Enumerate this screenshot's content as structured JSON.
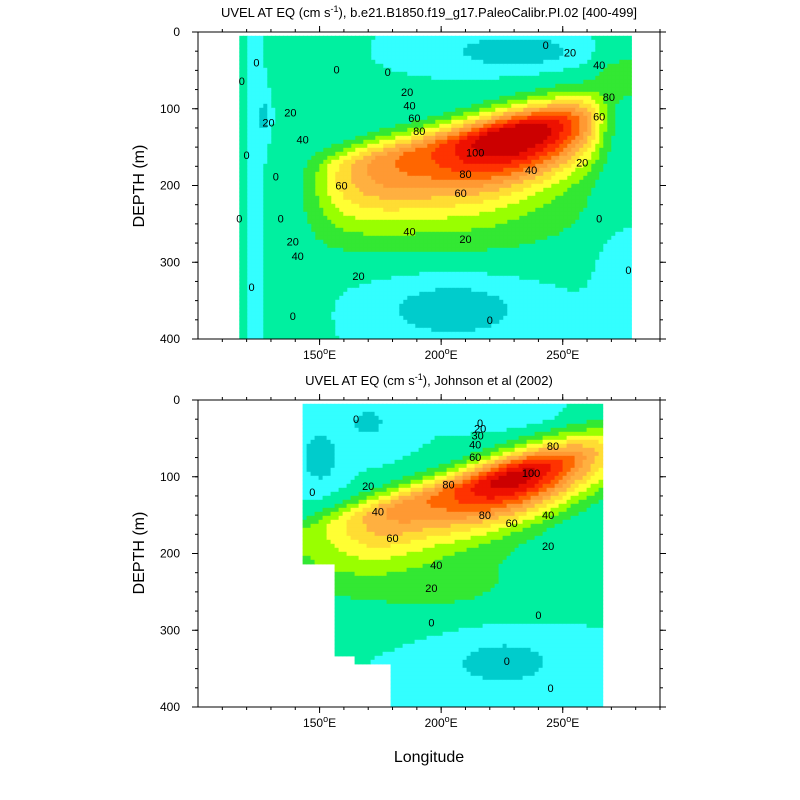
{
  "chart_data": [
    {
      "type": "heatmap",
      "id": "model",
      "title_main": "UVEL AT EQ (cm s",
      "title_sup": "-1",
      "title_rest": "), b.e21.B1850.f19_g17.PaleoCalibr.PI.02 [400-499]",
      "ylabel": "DEPTH (m)",
      "xlabel": "",
      "xlim": [
        100,
        290
      ],
      "ylim": [
        0,
        400
      ],
      "xticks": [
        150,
        200,
        250
      ],
      "xtick_labels": [
        "150",
        "200",
        "250"
      ],
      "xtick_suffix": "E",
      "yticks": [
        0,
        100,
        200,
        300,
        400
      ],
      "ytick_labels": [
        "0",
        "100",
        "200",
        "300",
        "400"
      ],
      "data_extent": {
        "lon": [
          117,
          278
        ],
        "depth": [
          5,
          400
        ]
      },
      "core": {
        "lon": 232,
        "depth": 130,
        "max": 110
      },
      "contour_levels": [
        -20,
        -10,
        0,
        10,
        20,
        30,
        40,
        50,
        60,
        70,
        80,
        90,
        100
      ],
      "contour_labels": [
        {
          "text": "0",
          "lon": 243,
          "depth": 17
        },
        {
          "text": "20",
          "lon": 253,
          "depth": 27
        },
        {
          "text": "40",
          "lon": 265,
          "depth": 43
        },
        {
          "text": "0",
          "lon": 178,
          "depth": 52
        },
        {
          "text": "20",
          "lon": 186,
          "depth": 78
        },
        {
          "text": "40",
          "lon": 187,
          "depth": 96
        },
        {
          "text": "60",
          "lon": 189,
          "depth": 112
        },
        {
          "text": "80",
          "lon": 191,
          "depth": 129
        },
        {
          "text": "100",
          "lon": 214,
          "depth": 157
        },
        {
          "text": "80",
          "lon": 210,
          "depth": 185
        },
        {
          "text": "60",
          "lon": 208,
          "depth": 210
        },
        {
          "text": "40",
          "lon": 237,
          "depth": 180
        },
        {
          "text": "20",
          "lon": 258,
          "depth": 170
        },
        {
          "text": "80",
          "lon": 269,
          "depth": 85
        },
        {
          "text": "60",
          "lon": 265,
          "depth": 110
        },
        {
          "text": "20",
          "lon": 138,
          "depth": 105
        },
        {
          "text": "40",
          "lon": 143,
          "depth": 140
        },
        {
          "text": "60",
          "lon": 159,
          "depth": 200
        },
        {
          "text": "40",
          "lon": 187,
          "depth": 260
        },
        {
          "text": "20",
          "lon": 210,
          "depth": 270
        },
        {
          "text": "20",
          "lon": 166,
          "depth": 318
        },
        {
          "text": "20",
          "lon": 129,
          "depth": 118
        },
        {
          "text": "0",
          "lon": 157,
          "depth": 49
        },
        {
          "text": "20",
          "lon": 139,
          "depth": 273
        },
        {
          "text": "40",
          "lon": 141,
          "depth": 292
        },
        {
          "text": "0",
          "lon": 124,
          "depth": 40
        },
        {
          "text": "0",
          "lon": 118,
          "depth": 64
        },
        {
          "text": "0",
          "lon": 120,
          "depth": 160
        },
        {
          "text": "0",
          "lon": 117,
          "depth": 243
        },
        {
          "text": "0",
          "lon": 122,
          "depth": 332
        },
        {
          "text": "0",
          "lon": 132,
          "depth": 188
        },
        {
          "text": "0",
          "lon": 134,
          "depth": 243
        },
        {
          "text": "0",
          "lon": 139,
          "depth": 370
        },
        {
          "text": "0",
          "lon": 265,
          "depth": 243
        },
        {
          "text": "0",
          "lon": 277,
          "depth": 310
        },
        {
          "text": "0",
          "lon": 220,
          "depth": 375
        }
      ]
    },
    {
      "type": "heatmap",
      "id": "obs",
      "title_main": "UVEL AT EQ (cm s",
      "title_sup": "-1",
      "title_rest": "), Johnson et al (2002)",
      "ylabel": "DEPTH (m)",
      "xlabel": "Longitude",
      "xlim": [
        100,
        290
      ],
      "ylim": [
        0,
        400
      ],
      "xticks": [
        150,
        200,
        250
      ],
      "xtick_labels": [
        "150",
        "200",
        "250"
      ],
      "xtick_suffix": "E",
      "yticks": [
        0,
        100,
        200,
        300,
        400
      ],
      "ytick_labels": [
        "0",
        "100",
        "200",
        "300",
        "400"
      ],
      "data_extent": {
        "lon": [
          143,
          265
        ],
        "depth": [
          5,
          400
        ]
      },
      "land_mask": [
        [
          143,
          215
        ],
        [
          156,
          215
        ],
        [
          156,
          335
        ],
        [
          165,
          335
        ],
        [
          165,
          345
        ],
        [
          180,
          345
        ],
        [
          180,
          400
        ],
        [
          143,
          400
        ]
      ],
      "core": {
        "lon": 230,
        "depth": 110,
        "max": 105
      },
      "contour_levels": [
        0,
        10,
        20,
        30,
        40,
        50,
        60,
        70,
        80,
        90,
        100
      ],
      "contour_labels": [
        {
          "text": "20",
          "lon": 216,
          "depth": 37
        },
        {
          "text": "0",
          "lon": 216,
          "depth": 30
        },
        {
          "text": "30",
          "lon": 215,
          "depth": 46
        },
        {
          "text": "40",
          "lon": 214,
          "depth": 58
        },
        {
          "text": "60",
          "lon": 214,
          "depth": 74
        },
        {
          "text": "80",
          "lon": 246,
          "depth": 60
        },
        {
          "text": "80",
          "lon": 203,
          "depth": 110
        },
        {
          "text": "100",
          "lon": 237,
          "depth": 95
        },
        {
          "text": "80",
          "lon": 218,
          "depth": 150
        },
        {
          "text": "60",
          "lon": 229,
          "depth": 160
        },
        {
          "text": "40",
          "lon": 244,
          "depth": 150
        },
        {
          "text": "20",
          "lon": 244,
          "depth": 190
        },
        {
          "text": "60",
          "lon": 180,
          "depth": 180
        },
        {
          "text": "40",
          "lon": 174,
          "depth": 145
        },
        {
          "text": "20",
          "lon": 170,
          "depth": 112
        },
        {
          "text": "0",
          "lon": 165,
          "depth": 25
        },
        {
          "text": "0",
          "lon": 147,
          "depth": 120
        },
        {
          "text": "40",
          "lon": 198,
          "depth": 215
        },
        {
          "text": "20",
          "lon": 196,
          "depth": 245
        },
        {
          "text": "0",
          "lon": 196,
          "depth": 290
        },
        {
          "text": "0",
          "lon": 240,
          "depth": 280
        },
        {
          "text": "0",
          "lon": 227,
          "depth": 340
        },
        {
          "text": "0",
          "lon": 245,
          "depth": 375
        }
      ]
    }
  ]
}
